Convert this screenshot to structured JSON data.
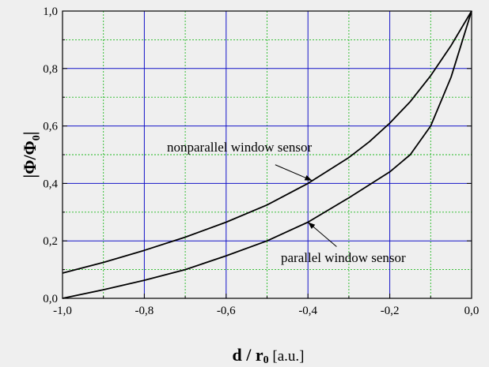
{
  "chart_data": {
    "type": "line",
    "title": "",
    "xlabel": {
      "part1": "d / r",
      "sub": "0",
      "part2": " [a.u.]"
    },
    "ylabel": {
      "part1": "|Φ/Φ",
      "sub": "0",
      "part2": "|"
    },
    "xlim": [
      -1.0,
      0.0
    ],
    "ylim": [
      0.0,
      1.0
    ],
    "x_ticks": [
      -1.0,
      -0.8,
      -0.6,
      -0.4,
      -0.2,
      0.0
    ],
    "x_tick_labels": [
      "-1,0",
      "-0,8",
      "-0,6",
      "-0,4",
      "-0,2",
      "0,0"
    ],
    "y_ticks": [
      0.0,
      0.2,
      0.4,
      0.6,
      0.8,
      1.0
    ],
    "y_tick_labels": [
      "0,0",
      "0,2",
      "0,4",
      "0,6",
      "0,8",
      "1,0"
    ],
    "grid": {
      "major": true,
      "minor": true,
      "major_color": "#1414c8",
      "minor_color": "#22b922"
    },
    "line_color": "#000000",
    "series": [
      {
        "name": "nonparallel window sensor",
        "x": [
          -1.0,
          -0.9,
          -0.8,
          -0.7,
          -0.6,
          -0.5,
          -0.4,
          -0.3,
          -0.25,
          -0.2,
          -0.15,
          -0.1,
          -0.05,
          0.0
        ],
        "y": [
          0.088,
          0.125,
          0.167,
          0.213,
          0.265,
          0.325,
          0.4,
          0.49,
          0.545,
          0.61,
          0.685,
          0.775,
          0.88,
          1.0
        ]
      },
      {
        "name": "parallel window sensor",
        "x": [
          -1.0,
          -0.9,
          -0.8,
          -0.7,
          -0.6,
          -0.5,
          -0.4,
          -0.3,
          -0.2,
          -0.15,
          -0.1,
          -0.05,
          0.0
        ],
        "y": [
          0.0,
          0.03,
          0.063,
          0.1,
          0.148,
          0.2,
          0.265,
          0.35,
          0.44,
          0.5,
          0.6,
          0.77,
          1.0
        ]
      }
    ],
    "annotations": [
      {
        "text": "nonparallel window sensor",
        "series": 0,
        "arrow_tail": [
          -0.48,
          0.465
        ],
        "arrow_head": [
          -0.39,
          0.41
        ]
      },
      {
        "text": "parallel window sensor",
        "series": 1,
        "arrow_tail": [
          -0.33,
          0.18
        ],
        "arrow_head": [
          -0.4,
          0.265
        ]
      }
    ]
  }
}
